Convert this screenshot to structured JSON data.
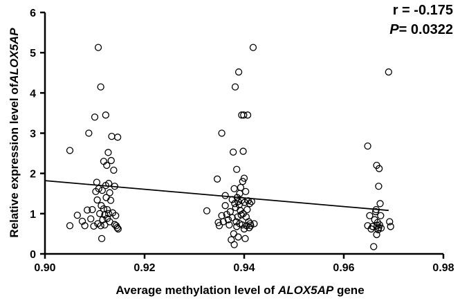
{
  "chart_data": {
    "type": "scatter",
    "title": "",
    "xlabel": {
      "prefix": "Average methylation level of ",
      "gene": "ALOX5AP",
      "suffix": " gene"
    },
    "ylabel": {
      "prefix": "Relative expression level of",
      "gene": "ALOX5AP"
    },
    "xlim": [
      0.9,
      0.98
    ],
    "ylim": [
      0,
      6
    ],
    "xticks": [
      "0.90",
      "0.92",
      "0.94",
      "0.96",
      "0.98"
    ],
    "yticks": [
      "0",
      "1",
      "2",
      "3",
      "4",
      "5",
      "6"
    ],
    "xtick_values": [
      0.9,
      0.92,
      0.94,
      0.96,
      0.98
    ],
    "ytick_values": [
      0,
      1,
      2,
      3,
      4,
      5,
      6
    ],
    "grid": false,
    "marker": "open-circle",
    "annotation": {
      "r_label": "r = -0.175",
      "p_label": "P",
      "p_value": "= 0.0322"
    },
    "regression_line": {
      "x": [
        0.9,
        0.969
      ],
      "y": [
        1.82,
        1.08
      ]
    },
    "points": [
      [
        0.905,
        2.57
      ],
      [
        0.905,
        0.7
      ],
      [
        0.9065,
        0.96
      ],
      [
        0.9075,
        0.81
      ],
      [
        0.908,
        0.7
      ],
      [
        0.9085,
        1.09
      ],
      [
        0.9088,
        3.0
      ],
      [
        0.9092,
        0.87
      ],
      [
        0.9095,
        1.1
      ],
      [
        0.9098,
        0.69
      ],
      [
        0.91,
        3.4
      ],
      [
        0.9102,
        1.55
      ],
      [
        0.9104,
        1.78
      ],
      [
        0.9105,
        1.34
      ],
      [
        0.9106,
        0.75
      ],
      [
        0.9107,
        5.13
      ],
      [
        0.9108,
        1.62
      ],
      [
        0.911,
        1.0
      ],
      [
        0.9112,
        4.15
      ],
      [
        0.9112,
        0.7
      ],
      [
        0.9113,
        1.2
      ],
      [
        0.9114,
        0.38
      ],
      [
        0.9115,
        1.58
      ],
      [
        0.9116,
        0.85
      ],
      [
        0.9118,
        2.3
      ],
      [
        0.9118,
        1.12
      ],
      [
        0.912,
        0.97
      ],
      [
        0.912,
        0.72
      ],
      [
        0.9122,
        1.7
      ],
      [
        0.9122,
        3.45
      ],
      [
        0.9123,
        1.4
      ],
      [
        0.9124,
        2.2
      ],
      [
        0.9125,
        1.1
      ],
      [
        0.9125,
        0.88
      ],
      [
        0.9127,
        2.52
      ],
      [
        0.9128,
        1.75
      ],
      [
        0.9128,
        1.0
      ],
      [
        0.913,
        1.52
      ],
      [
        0.913,
        0.8
      ],
      [
        0.9132,
        1.33
      ],
      [
        0.9133,
        2.32
      ],
      [
        0.9134,
        2.92
      ],
      [
        0.9136,
        1.02
      ],
      [
        0.9138,
        2.08
      ],
      [
        0.914,
        1.68
      ],
      [
        0.914,
        0.73
      ],
      [
        0.9142,
        0.95
      ],
      [
        0.9143,
        0.7
      ],
      [
        0.9145,
        0.65
      ],
      [
        0.9146,
        2.9
      ],
      [
        0.9147,
        0.62
      ],
      [
        0.9325,
        1.07
      ],
      [
        0.9346,
        1.86
      ],
      [
        0.9348,
        0.78
      ],
      [
        0.935,
        0.7
      ],
      [
        0.9355,
        3.0
      ],
      [
        0.9355,
        0.95
      ],
      [
        0.9358,
        0.8
      ],
      [
        0.9362,
        1.45
      ],
      [
        0.9362,
        1.2
      ],
      [
        0.9365,
        0.98
      ],
      [
        0.9368,
        0.85
      ],
      [
        0.937,
        0.72
      ],
      [
        0.9372,
        1.05
      ],
      [
        0.9374,
        0.35
      ],
      [
        0.9376,
        1.35
      ],
      [
        0.9376,
        0.9
      ],
      [
        0.9378,
        2.53
      ],
      [
        0.9379,
        0.5
      ],
      [
        0.938,
        1.62
      ],
      [
        0.938,
        0.23
      ],
      [
        0.9381,
        1.25
      ],
      [
        0.9382,
        4.15
      ],
      [
        0.9383,
        1.15
      ],
      [
        0.9384,
        0.8
      ],
      [
        0.9385,
        2.1
      ],
      [
        0.9385,
        0.68
      ],
      [
        0.9386,
        1.4
      ],
      [
        0.9387,
        0.92
      ],
      [
        0.9388,
        1.3
      ],
      [
        0.9388,
        0.42
      ],
      [
        0.9389,
        4.52
      ],
      [
        0.939,
        1.22
      ],
      [
        0.9391,
        1.5
      ],
      [
        0.9391,
        0.75
      ],
      [
        0.9392,
        1.08
      ],
      [
        0.9393,
        1.65
      ],
      [
        0.9394,
        0.97
      ],
      [
        0.9395,
        3.45
      ],
      [
        0.9395,
        1.33
      ],
      [
        0.9396,
        0.72
      ],
      [
        0.9397,
        1.8
      ],
      [
        0.9398,
        2.55
      ],
      [
        0.9398,
        1.0
      ],
      [
        0.9399,
        3.45
      ],
      [
        0.94,
        1.88
      ],
      [
        0.94,
        0.62
      ],
      [
        0.9401,
        1.28
      ],
      [
        0.9402,
        0.38
      ],
      [
        0.9403,
        1.55
      ],
      [
        0.9404,
        0.92
      ],
      [
        0.9405,
        0.7
      ],
      [
        0.9406,
        1.1
      ],
      [
        0.9407,
        3.45
      ],
      [
        0.9408,
        1.32
      ],
      [
        0.9409,
        0.8
      ],
      [
        0.941,
        0.65
      ],
      [
        0.9411,
        1.25
      ],
      [
        0.9412,
        0.75
      ],
      [
        0.9413,
        0.7
      ],
      [
        0.9415,
        1.3
      ],
      [
        0.9418,
        5.13
      ],
      [
        0.942,
        0.75
      ],
      [
        0.9648,
        2.68
      ],
      [
        0.9648,
        0.7
      ],
      [
        0.9652,
        0.95
      ],
      [
        0.9655,
        0.62
      ],
      [
        0.9658,
        0.68
      ],
      [
        0.966,
        0.18
      ],
      [
        0.9662,
        0.85
      ],
      [
        0.9664,
        1.05
      ],
      [
        0.9665,
        1.1
      ],
      [
        0.9666,
        0.48
      ],
      [
        0.9666,
        2.2
      ],
      [
        0.9667,
        0.7
      ],
      [
        0.9668,
        0.78
      ],
      [
        0.9669,
        0.6
      ],
      [
        0.967,
        1.68
      ],
      [
        0.967,
        0.65
      ],
      [
        0.9671,
        2.12
      ],
      [
        0.9672,
        0.72
      ],
      [
        0.9673,
        1.25
      ],
      [
        0.9674,
        0.95
      ],
      [
        0.9675,
        0.64
      ],
      [
        0.969,
        4.52
      ],
      [
        0.9692,
        0.8
      ],
      [
        0.9694,
        0.68
      ]
    ]
  }
}
